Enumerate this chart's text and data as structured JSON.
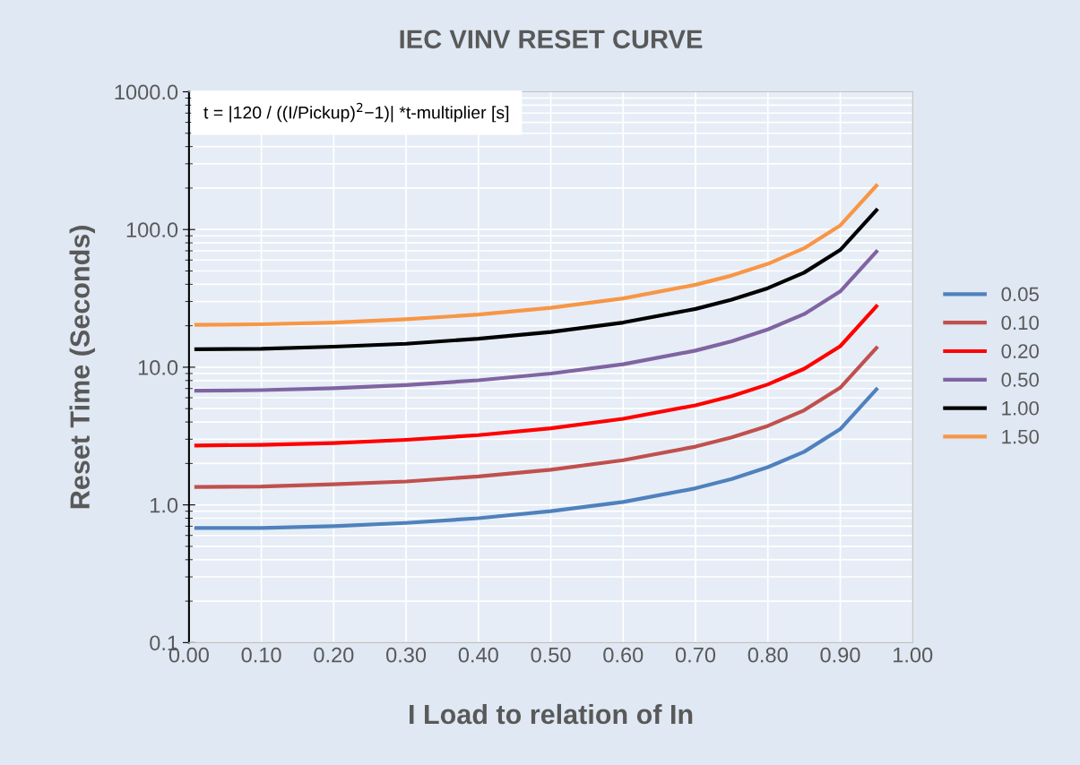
{
  "chart_data": {
    "type": "line",
    "title": "IEC VINV RESET CURVE",
    "xlabel": "I Load to relation of In",
    "ylabel": "Reset Time (Seconds)",
    "annotations": [
      "t = |120 / ((I/Pickup)$^{2}$−1)| *t-multiplier [s]"
    ],
    "x": [
      0.01,
      0.1,
      0.2,
      0.3,
      0.4,
      0.5,
      0.6,
      0.7,
      0.75,
      0.8,
      0.85,
      0.9,
      0.95
    ],
    "series": [
      {
        "name": "0.05",
        "color": "#4f81bd",
        "values": [
          0.68,
          0.68,
          0.7,
          0.74,
          0.8,
          0.9,
          1.05,
          1.32,
          1.54,
          1.88,
          2.43,
          3.55,
          6.9
        ]
      },
      {
        "name": "0.10",
        "color": "#c0504d",
        "values": [
          1.35,
          1.36,
          1.41,
          1.48,
          1.61,
          1.8,
          2.11,
          2.65,
          3.09,
          3.75,
          4.86,
          7.1,
          13.8
        ]
      },
      {
        "name": "0.20",
        "color": "#ff0000",
        "values": [
          2.7,
          2.73,
          2.81,
          2.97,
          3.21,
          3.6,
          4.22,
          5.29,
          6.17,
          7.5,
          9.73,
          14.2,
          27.7
        ]
      },
      {
        "name": "0.50",
        "color": "#8064a2",
        "values": [
          6.75,
          6.82,
          7.03,
          7.42,
          8.04,
          9.0,
          10.5,
          13.2,
          15.4,
          18.8,
          24.3,
          35.5,
          69
        ]
      },
      {
        "name": "1.00",
        "color": "#000000",
        "values": [
          13.5,
          13.6,
          14.1,
          14.8,
          16.1,
          18.0,
          21.1,
          26.5,
          30.9,
          37.5,
          48.6,
          71,
          138
        ]
      },
      {
        "name": "1.50",
        "color": "#f79646",
        "values": [
          20.3,
          20.5,
          21.1,
          22.3,
          24.1,
          27,
          31.6,
          39.7,
          46.3,
          56.3,
          73,
          107,
          208
        ]
      }
    ],
    "log": "y",
    "xlim": [
      0,
      1
    ],
    "ylim": [
      0.1,
      1000
    ],
    "xticks": [
      {
        "value": 0,
        "label": "0.00"
      },
      {
        "value": 0.1,
        "label": "0.10"
      },
      {
        "value": 0.2,
        "label": "0.20"
      },
      {
        "value": 0.3,
        "label": "0.30"
      },
      {
        "value": 0.4,
        "label": "0.40"
      },
      {
        "value": 0.5,
        "label": "0.50"
      },
      {
        "value": 0.6,
        "label": "0.60"
      },
      {
        "value": 0.7,
        "label": "0.70"
      },
      {
        "value": 0.8,
        "label": "0.80"
      },
      {
        "value": 0.9,
        "label": "0.90"
      },
      {
        "value": 1,
        "label": "1.00"
      }
    ],
    "yticks": [
      0.1,
      {
        "value": 1,
        "label": "1.0"
      },
      {
        "value": 10,
        "label": "10.0"
      },
      {
        "value": 100,
        "label": "100.0"
      },
      {
        "value": 1000,
        "label": "1000.0"
      }
    ],
    "grid": true,
    "legend": "right",
    "marker": "none",
    "line_style": "solid"
  }
}
